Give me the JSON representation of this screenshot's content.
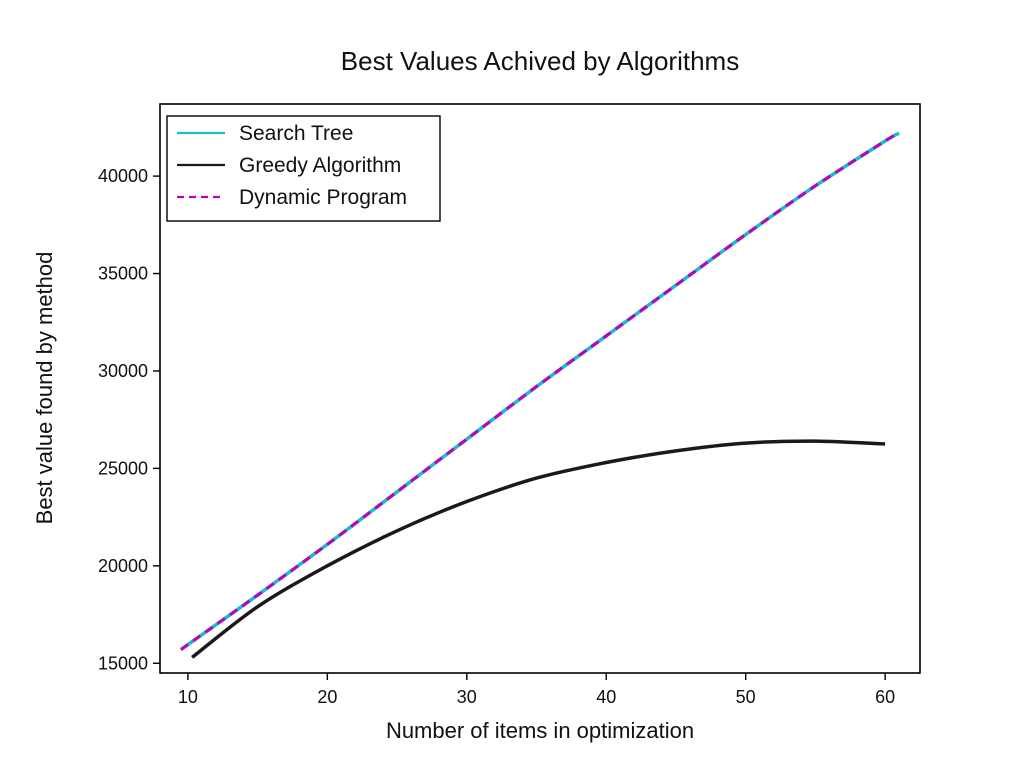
{
  "chart_data": {
    "type": "line",
    "title": "Best Values Achived by Algorithms",
    "xlabel": "Number of items in optimization",
    "ylabel": "Best value found by method",
    "xlim": [
      8,
      62.5
    ],
    "ylim": [
      14500,
      43700
    ],
    "xticks": [
      10,
      20,
      30,
      40,
      50,
      60
    ],
    "yticks": [
      15000,
      20000,
      25000,
      30000,
      35000,
      40000
    ],
    "grid": false,
    "legend": {
      "position": "top-left"
    },
    "series": [
      {
        "name": "Search Tree",
        "color": "#17becf",
        "style": "solid",
        "x": [
          9.5,
          15,
          20,
          25,
          30,
          35,
          40,
          45,
          50,
          55,
          60,
          61
        ],
        "y": [
          15700,
          18500,
          21100,
          23800,
          26500,
          29200,
          31800,
          34400,
          37000,
          39500,
          41800,
          42200
        ]
      },
      {
        "name": "Greedy Algorithm",
        "color": "#1a1a1a",
        "style": "solid",
        "x": [
          10.3,
          15,
          20,
          25,
          30,
          35,
          40,
          45,
          50,
          55,
          60
        ],
        "y": [
          15300,
          17900,
          20000,
          21800,
          23300,
          24500,
          25300,
          25900,
          26300,
          26400,
          26250
        ]
      },
      {
        "name": "Dynamic Program",
        "color": "#bf00bf",
        "style": "dashed",
        "x": [
          9.5,
          15,
          20,
          25,
          30,
          35,
          40,
          45,
          50,
          55,
          60,
          61
        ],
        "y": [
          15700,
          18500,
          21100,
          23800,
          26500,
          29200,
          31800,
          34400,
          37000,
          39500,
          41800,
          42200
        ]
      }
    ]
  }
}
